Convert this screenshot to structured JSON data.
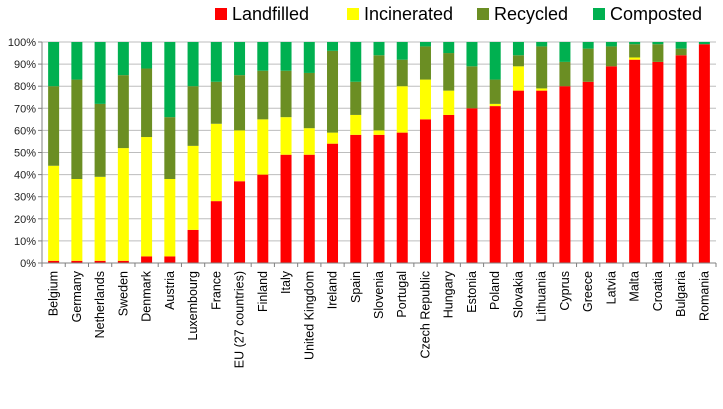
{
  "chart_data": {
    "type": "stacked-bar",
    "title": "",
    "xlabel": "",
    "ylabel": "",
    "ylim": [
      0,
      100
    ],
    "y_tick_labels": [
      "0%",
      "10%",
      "20%",
      "30%",
      "40%",
      "50%",
      "60%",
      "70%",
      "80%",
      "90%",
      "100%"
    ],
    "grid": true,
    "legend_position": "top-right",
    "categories": [
      "Belgium",
      "Germany",
      "Netherlands",
      "Sweden",
      "Denmark",
      "Austria",
      "Luxembourg",
      "France",
      "EU (27 countries)",
      "Finland",
      "Italy",
      "United Kingdom",
      "Ireland",
      "Spain",
      "Slovenia",
      "Portugal",
      "Czech Republic",
      "Hungary",
      "Estonia",
      "Poland",
      "Slovakia",
      "Lithuania",
      "Cyprus",
      "Greece",
      "Latvia",
      "Malta",
      "Croatia",
      "Bulgaria",
      "Romania"
    ],
    "series": [
      {
        "name": "Landfilled",
        "color": "#ff0000",
        "values": [
          1,
          1,
          1,
          1,
          3,
          3,
          15,
          28,
          37,
          40,
          49,
          49,
          54,
          58,
          58,
          59,
          65,
          67,
          70,
          71,
          78,
          78,
          80,
          82,
          89,
          92,
          91,
          94,
          99
        ]
      },
      {
        "name": "Incinerated",
        "color": "#ffff00",
        "values": [
          43,
          37,
          38,
          51,
          54,
          35,
          38,
          35,
          23,
          25,
          17,
          12,
          5,
          9,
          2,
          21,
          18,
          11,
          0,
          1,
          11,
          1,
          0,
          0,
          0,
          1,
          0,
          0,
          0
        ]
      },
      {
        "name": "Recycled",
        "color": "#6b8e23",
        "values": [
          36,
          45,
          33,
          33,
          31,
          28,
          27,
          19,
          25,
          22,
          21,
          25,
          37,
          15,
          34,
          12,
          15,
          17,
          19,
          11,
          5,
          19,
          11,
          15,
          9,
          6,
          8,
          3,
          0
        ]
      },
      {
        "name": "Composted",
        "color": "#00b050",
        "values": [
          20,
          17,
          28,
          15,
          12,
          34,
          20,
          18,
          15,
          13,
          13,
          14,
          4,
          18,
          6,
          8,
          2,
          5,
          11,
          17,
          6,
          2,
          9,
          3,
          2,
          1,
          1,
          3,
          1
        ]
      }
    ]
  }
}
